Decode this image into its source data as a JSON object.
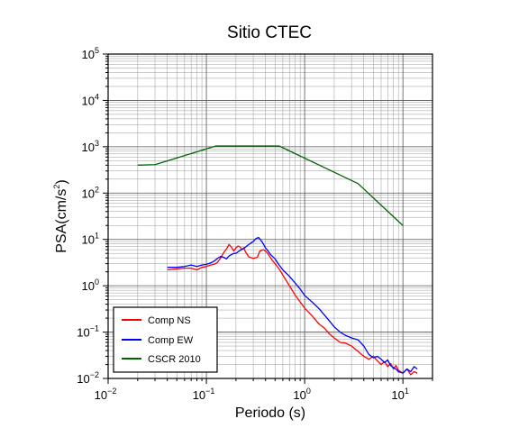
{
  "chart_data": {
    "type": "line",
    "title": "Sitio CTEC",
    "xlabel": "Periodo (s)",
    "ylabel_main": "PSA(cm/s",
    "ylabel_sup": "2",
    "ylabel_end": ")",
    "x_scale": "log",
    "y_scale": "log",
    "xlim": [
      0.01,
      20
    ],
    "ylim": [
      0.01,
      100000
    ],
    "x_ticks": [
      {
        "value": 0.01,
        "base": "10",
        "exp": "−2"
      },
      {
        "value": 0.1,
        "base": "10",
        "exp": "−1"
      },
      {
        "value": 1,
        "base": "10",
        "exp": "0"
      },
      {
        "value": 10,
        "base": "10",
        "exp": "1"
      }
    ],
    "y_ticks": [
      {
        "value": 0.01,
        "base": "10",
        "exp": "−2"
      },
      {
        "value": 0.1,
        "base": "10",
        "exp": "−1"
      },
      {
        "value": 1,
        "base": "10",
        "exp": "0"
      },
      {
        "value": 10,
        "base": "10",
        "exp": "1"
      },
      {
        "value": 100,
        "base": "10",
        "exp": "2"
      },
      {
        "value": 1000,
        "base": "10",
        "exp": "3"
      },
      {
        "value": 10000,
        "base": "10",
        "exp": "4"
      },
      {
        "value": 100000,
        "base": "10",
        "exp": "5"
      }
    ],
    "grid": true,
    "legend_position": "bottom-left",
    "series": [
      {
        "name": "Comp NS",
        "color": "#ff0000",
        "x": [
          0.04,
          0.05,
          0.06,
          0.07,
          0.08,
          0.09,
          0.1,
          0.11,
          0.12,
          0.13,
          0.14,
          0.15,
          0.16,
          0.17,
          0.18,
          0.19,
          0.2,
          0.21,
          0.22,
          0.23,
          0.24,
          0.25,
          0.27,
          0.3,
          0.33,
          0.35,
          0.38,
          0.4,
          0.42,
          0.45,
          0.48,
          0.5,
          0.55,
          0.6,
          0.7,
          0.8,
          0.9,
          1.0,
          1.2,
          1.4,
          1.6,
          1.8,
          2.0,
          2.3,
          2.6,
          3.0,
          3.5,
          4.0,
          4.5,
          5.0,
          5.5,
          6.0,
          6.5,
          7.0,
          7.5,
          8.0,
          8.5,
          9.0,
          10.0,
          11.0,
          12.0,
          13.0,
          14.0
        ],
        "y": [
          2.2,
          2.3,
          2.4,
          2.4,
          2.2,
          2.5,
          2.6,
          2.8,
          2.9,
          3.2,
          4.0,
          5.2,
          6.2,
          7.8,
          6.8,
          5.6,
          6.6,
          7.2,
          6.9,
          6.0,
          6.6,
          5.4,
          4.2,
          3.9,
          4.1,
          5.6,
          6.0,
          5.6,
          5.0,
          4.0,
          3.3,
          3.0,
          2.3,
          1.7,
          1.0,
          0.63,
          0.45,
          0.33,
          0.22,
          0.15,
          0.12,
          0.09,
          0.075,
          0.06,
          0.058,
          0.05,
          0.038,
          0.03,
          0.026,
          0.03,
          0.024,
          0.02,
          0.023,
          0.018,
          0.021,
          0.016,
          0.019,
          0.015,
          0.013,
          0.016,
          0.012,
          0.014,
          0.013
        ]
      },
      {
        "name": "Comp EW",
        "color": "#0000ff",
        "x": [
          0.04,
          0.05,
          0.06,
          0.07,
          0.08,
          0.09,
          0.1,
          0.11,
          0.12,
          0.13,
          0.14,
          0.15,
          0.16,
          0.17,
          0.18,
          0.19,
          0.2,
          0.22,
          0.24,
          0.26,
          0.28,
          0.3,
          0.32,
          0.34,
          0.36,
          0.38,
          0.4,
          0.42,
          0.45,
          0.5,
          0.55,
          0.6,
          0.7,
          0.8,
          0.9,
          1.0,
          1.2,
          1.4,
          1.6,
          1.8,
          2.0,
          2.3,
          2.6,
          3.0,
          3.5,
          4.0,
          4.5,
          5.0,
          5.5,
          6.0,
          6.5,
          7.0,
          7.5,
          8.0,
          8.5,
          9.0,
          10.0,
          11.0,
          12.0,
          13.0,
          14.0
        ],
        "y": [
          2.5,
          2.5,
          2.6,
          2.8,
          2.6,
          2.8,
          2.9,
          3.1,
          3.4,
          3.9,
          4.3,
          4.1,
          3.8,
          4.4,
          4.7,
          5.0,
          5.0,
          5.8,
          6.4,
          7.3,
          8.2,
          9.0,
          10.5,
          11.0,
          9.5,
          8.0,
          6.5,
          5.8,
          4.7,
          3.8,
          2.8,
          2.2,
          1.6,
          1.15,
          0.85,
          0.62,
          0.44,
          0.32,
          0.23,
          0.17,
          0.13,
          0.1,
          0.085,
          0.075,
          0.068,
          0.05,
          0.033,
          0.028,
          0.03,
          0.026,
          0.022,
          0.025,
          0.019,
          0.017,
          0.016,
          0.014,
          0.013,
          0.016,
          0.014,
          0.018,
          0.016
        ]
      },
      {
        "name": "CSCR 2010",
        "color": "#006400",
        "x": [
          0.02,
          0.03,
          0.125,
          0.55,
          3.5,
          10.0
        ],
        "y": [
          400,
          410,
          1040,
          1040,
          160,
          20
        ]
      }
    ]
  }
}
